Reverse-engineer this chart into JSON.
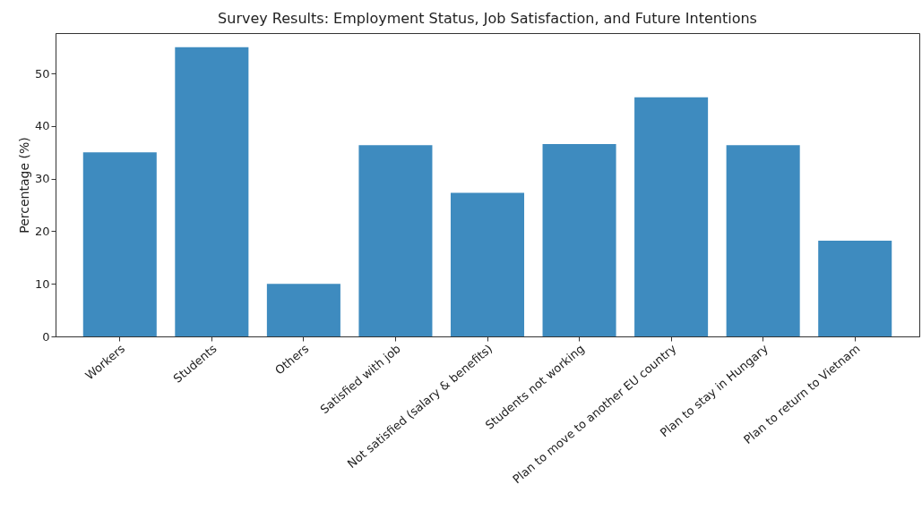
{
  "chart_data": {
    "type": "bar",
    "title": "Survey Results: Employment Status, Job Satisfaction, and Future Intentions",
    "ylabel": "Percentage (%)",
    "categories": [
      "Workers",
      "Students",
      "Others",
      "Satisfied with job",
      "Not satisfied (salary & benefits)",
      "Students not working",
      "Plan to move to another EU country",
      "Plan to stay in Hungary",
      "Plan to return to Vietnam"
    ],
    "values": [
      35,
      55,
      10,
      36.4,
      27.3,
      36.6,
      45.5,
      36.4,
      18.2
    ],
    "color": "#3e8bbf",
    "ylim": [
      0,
      57.7
    ],
    "yticks": [
      0,
      10,
      20,
      30,
      40,
      50
    ],
    "grid": false
  }
}
